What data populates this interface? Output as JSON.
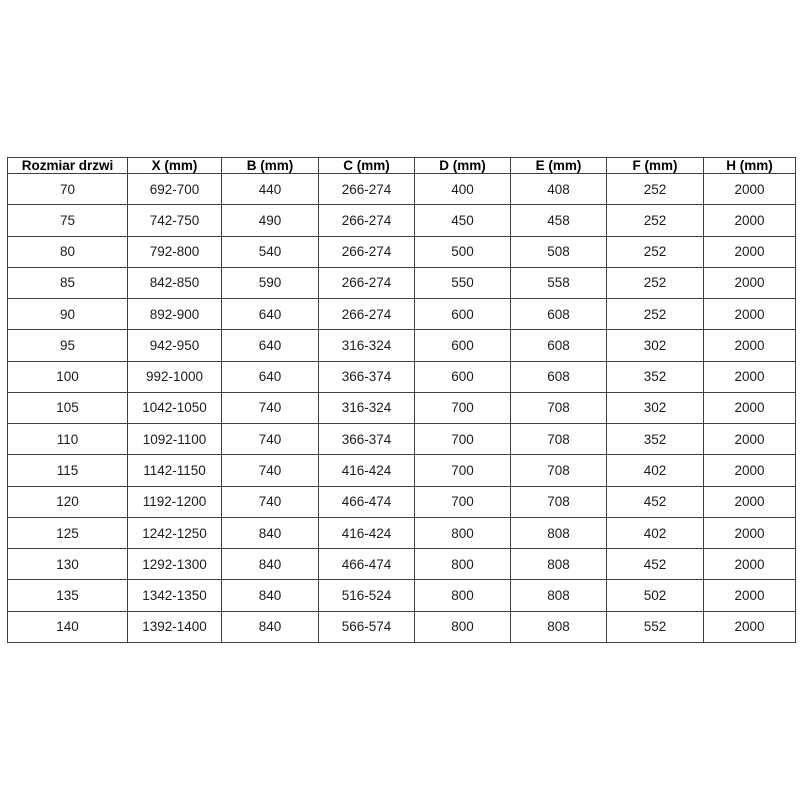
{
  "chart_data": {
    "type": "table",
    "title": "",
    "columns": [
      "Rozmiar drzwi",
      "X (mm)",
      "B (mm)",
      "C (mm)",
      "D (mm)",
      "E (mm)",
      "F (mm)",
      "H (mm)"
    ],
    "rows": [
      [
        "70",
        "692-700",
        "440",
        "266-274",
        "400",
        "408",
        "252",
        "2000"
      ],
      [
        "75",
        "742-750",
        "490",
        "266-274",
        "450",
        "458",
        "252",
        "2000"
      ],
      [
        "80",
        "792-800",
        "540",
        "266-274",
        "500",
        "508",
        "252",
        "2000"
      ],
      [
        "85",
        "842-850",
        "590",
        "266-274",
        "550",
        "558",
        "252",
        "2000"
      ],
      [
        "90",
        "892-900",
        "640",
        "266-274",
        "600",
        "608",
        "252",
        "2000"
      ],
      [
        "95",
        "942-950",
        "640",
        "316-324",
        "600",
        "608",
        "302",
        "2000"
      ],
      [
        "100",
        "992-1000",
        "640",
        "366-374",
        "600",
        "608",
        "352",
        "2000"
      ],
      [
        "105",
        "1042-1050",
        "740",
        "316-324",
        "700",
        "708",
        "302",
        "2000"
      ],
      [
        "110",
        "1092-1100",
        "740",
        "366-374",
        "700",
        "708",
        "352",
        "2000"
      ],
      [
        "115",
        "1142-1150",
        "740",
        "416-424",
        "700",
        "708",
        "402",
        "2000"
      ],
      [
        "120",
        "1192-1200",
        "740",
        "466-474",
        "700",
        "708",
        "452",
        "2000"
      ],
      [
        "125",
        "1242-1250",
        "840",
        "416-424",
        "800",
        "808",
        "402",
        "2000"
      ],
      [
        "130",
        "1292-1300",
        "840",
        "466-474",
        "800",
        "808",
        "452",
        "2000"
      ],
      [
        "135",
        "1342-1350",
        "840",
        "516-524",
        "800",
        "808",
        "502",
        "2000"
      ],
      [
        "140",
        "1392-1400",
        "840",
        "566-574",
        "800",
        "808",
        "552",
        "2000"
      ]
    ],
    "layout": {
      "grid": true,
      "header_bold": true,
      "cell_align": "center"
    }
  },
  "colors": {
    "background": "#ffffff",
    "border": "#404040",
    "text": "#1c1c1c",
    "header_text": "#000000"
  }
}
